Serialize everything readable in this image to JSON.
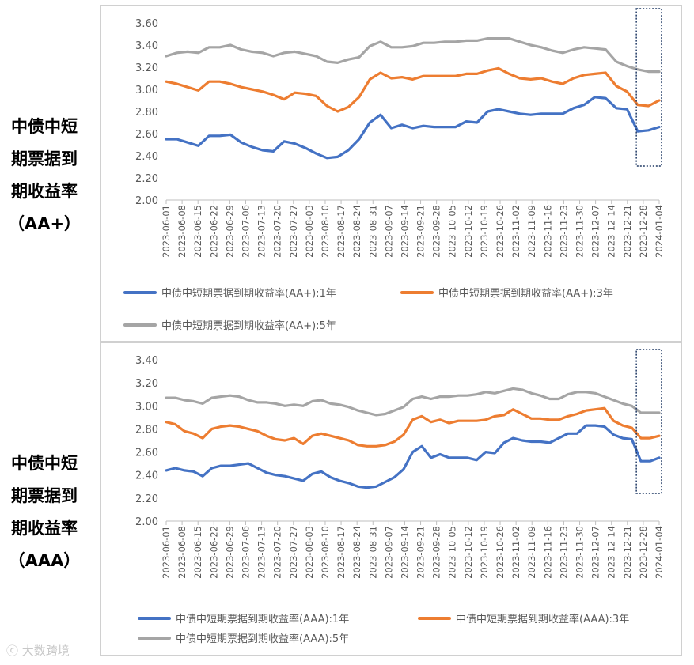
{
  "left_labels": [
    {
      "lines": [
        "中债中短",
        "期票据到",
        "期收益率",
        "（AA+）"
      ]
    },
    {
      "lines": [
        "中债中短",
        "期票据到",
        "期收益率",
        "（AAA）"
      ]
    }
  ],
  "watermark": "大数跨境",
  "colors": {
    "blue": "#4472C4",
    "orange": "#ED7D31",
    "gray": "#A5A5A5",
    "highlight": "#1F3864"
  },
  "chart_data": [
    {
      "type": "line",
      "ylim": [
        2.0,
        3.6
      ],
      "yticks": [
        "2.00",
        "2.20",
        "2.40",
        "2.60",
        "2.80",
        "3.00",
        "3.20",
        "3.40",
        "3.60"
      ],
      "x_tick_labels": [
        "2023-06-01",
        "2023-06-08",
        "2023-06-15",
        "2023-06-22",
        "2023-06-29",
        "2023-07-06",
        "2023-07-13",
        "2023-07-20",
        "2023-07-27",
        "2023-08-03",
        "2023-08-10",
        "2023-08-17",
        "2023-08-24",
        "2023-08-31",
        "2023-09-07",
        "2023-09-14",
        "2023-09-21",
        "2023-09-28",
        "2023-10-05",
        "2023-10-12",
        "2023-10-19",
        "2023-10-26",
        "2023-11-02",
        "2023-11-09",
        "2023-11-16",
        "2023-11-23",
        "2023-11-30",
        "2023-12-07",
        "2023-12-14",
        "2023-12-21",
        "2023-12-28",
        "2024-01-04"
      ],
      "highlight_range": [
        "2023-12-26",
        "2024-01-04"
      ],
      "series": [
        {
          "name": "中债中短期票据到期收益率(AA+):1年",
          "color": "#4472C4",
          "values": [
            2.55,
            2.55,
            2.52,
            2.49,
            2.58,
            2.58,
            2.59,
            2.52,
            2.48,
            2.45,
            2.44,
            2.53,
            2.51,
            2.47,
            2.42,
            2.38,
            2.39,
            2.45,
            2.55,
            2.7,
            2.77,
            2.65,
            2.68,
            2.65,
            2.67,
            2.66,
            2.66,
            2.66,
            2.71,
            2.7,
            2.8,
            2.82,
            2.8,
            2.78,
            2.77,
            2.78,
            2.78,
            2.78,
            2.83,
            2.86,
            2.93,
            2.92,
            2.83,
            2.82,
            2.62,
            2.63,
            2.66
          ]
        },
        {
          "name": "中债中短期票据到期收益率(AA+):3年",
          "color": "#ED7D31",
          "values": [
            3.07,
            3.05,
            3.02,
            2.99,
            3.07,
            3.07,
            3.05,
            3.02,
            3.0,
            2.98,
            2.95,
            2.91,
            2.97,
            2.96,
            2.94,
            2.85,
            2.8,
            2.84,
            2.93,
            3.09,
            3.15,
            3.1,
            3.11,
            3.09,
            3.12,
            3.12,
            3.12,
            3.12,
            3.14,
            3.14,
            3.17,
            3.19,
            3.14,
            3.1,
            3.09,
            3.1,
            3.07,
            3.05,
            3.1,
            3.13,
            3.14,
            3.15,
            3.03,
            2.98,
            2.86,
            2.85,
            2.9
          ]
        },
        {
          "name": "中债中短期票据到期收益率(AA+):5年",
          "color": "#A5A5A5",
          "values": [
            3.3,
            3.33,
            3.34,
            3.33,
            3.38,
            3.38,
            3.4,
            3.36,
            3.34,
            3.33,
            3.3,
            3.33,
            3.34,
            3.32,
            3.3,
            3.25,
            3.24,
            3.27,
            3.29,
            3.39,
            3.43,
            3.38,
            3.38,
            3.39,
            3.42,
            3.42,
            3.43,
            3.43,
            3.44,
            3.44,
            3.46,
            3.46,
            3.46,
            3.43,
            3.4,
            3.38,
            3.35,
            3.33,
            3.36,
            3.38,
            3.37,
            3.36,
            3.25,
            3.21,
            3.18,
            3.16,
            3.16
          ]
        }
      ]
    },
    {
      "type": "line",
      "ylim": [
        2.0,
        3.4
      ],
      "yticks": [
        "2.00",
        "2.20",
        "2.40",
        "2.60",
        "2.80",
        "3.00",
        "3.20",
        "3.40"
      ],
      "x_tick_labels": [
        "2023-06-01",
        "2023-06-08",
        "2023-06-15",
        "2023-06-22",
        "2023-06-29",
        "2023-07-06",
        "2023-07-13",
        "2023-07-20",
        "2023-07-27",
        "2023-08-03",
        "2023-08-10",
        "2023-08-17",
        "2023-08-24",
        "2023-08-31",
        "2023-09-07",
        "2023-09-14",
        "2023-09-21",
        "2023-09-28",
        "2023-10-05",
        "2023-10-12",
        "2023-10-19",
        "2023-10-26",
        "2023-11-02",
        "2023-11-09",
        "2023-11-16",
        "2023-11-23",
        "2023-11-30",
        "2023-12-07",
        "2023-12-14",
        "2023-12-21",
        "2023-12-28",
        "2024-01-04"
      ],
      "highlight_range": [
        "2023-12-26",
        "2024-01-04"
      ],
      "series": [
        {
          "name": "中债中短期票据到期收益率(AAA):1年",
          "color": "#4472C4",
          "values": [
            2.44,
            2.46,
            2.44,
            2.43,
            2.39,
            2.46,
            2.48,
            2.48,
            2.49,
            2.5,
            2.46,
            2.42,
            2.4,
            2.39,
            2.37,
            2.35,
            2.41,
            2.43,
            2.38,
            2.35,
            2.33,
            2.3,
            2.29,
            2.3,
            2.34,
            2.38,
            2.45,
            2.6,
            2.65,
            2.55,
            2.58,
            2.55,
            2.55,
            2.55,
            2.53,
            2.6,
            2.59,
            2.68,
            2.72,
            2.7,
            2.69,
            2.69,
            2.68,
            2.72,
            2.76,
            2.76,
            2.83,
            2.83,
            2.82,
            2.75,
            2.72,
            2.71,
            2.52,
            2.52,
            2.55
          ]
        },
        {
          "name": "中债中短期票据到期收益率(AAA):3年",
          "color": "#ED7D31",
          "values": [
            2.86,
            2.84,
            2.78,
            2.76,
            2.72,
            2.8,
            2.82,
            2.83,
            2.82,
            2.8,
            2.78,
            2.74,
            2.71,
            2.7,
            2.72,
            2.67,
            2.74,
            2.76,
            2.74,
            2.72,
            2.7,
            2.66,
            2.65,
            2.65,
            2.66,
            2.69,
            2.75,
            2.88,
            2.91,
            2.86,
            2.88,
            2.85,
            2.87,
            2.87,
            2.87,
            2.88,
            2.91,
            2.92,
            2.97,
            2.93,
            2.89,
            2.89,
            2.88,
            2.88,
            2.91,
            2.93,
            2.96,
            2.97,
            2.98,
            2.87,
            2.83,
            2.81,
            2.72,
            2.72,
            2.74
          ]
        },
        {
          "name": "中债中短期票据到期收益率(AAA):5年",
          "color": "#A5A5A5",
          "values": [
            3.07,
            3.07,
            3.05,
            3.04,
            3.02,
            3.07,
            3.08,
            3.09,
            3.08,
            3.05,
            3.03,
            3.03,
            3.02,
            3.0,
            3.01,
            3.0,
            3.04,
            3.05,
            3.02,
            3.01,
            2.99,
            2.96,
            2.94,
            2.92,
            2.93,
            2.96,
            2.99,
            3.06,
            3.08,
            3.06,
            3.08,
            3.08,
            3.09,
            3.09,
            3.1,
            3.12,
            3.11,
            3.13,
            3.15,
            3.14,
            3.11,
            3.09,
            3.06,
            3.06,
            3.1,
            3.12,
            3.12,
            3.11,
            3.08,
            3.05,
            3.02,
            3.0,
            2.94,
            2.94,
            2.94
          ]
        }
      ]
    }
  ]
}
